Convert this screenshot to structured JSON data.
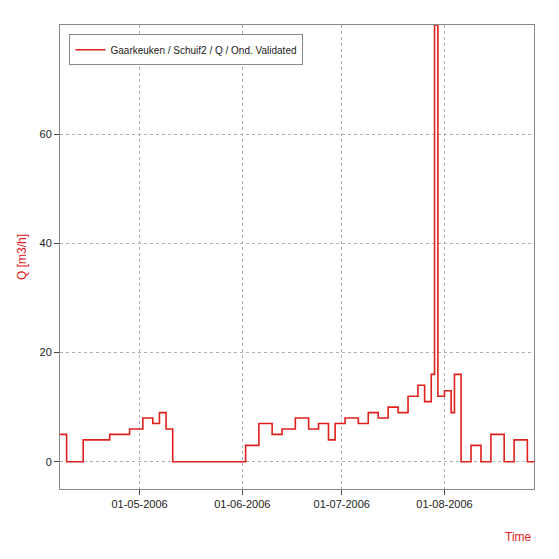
{
  "chart_data": {
    "type": "line",
    "y_label": "Q [m3/h]",
    "x_label": "Time",
    "x": [
      "2006-04-07",
      "2006-04-09",
      "2006-04-14",
      "2006-04-22",
      "2006-04-28",
      "2006-05-02",
      "2006-05-05",
      "2006-05-07",
      "2006-05-09",
      "2006-05-11",
      "2006-06-02",
      "2006-06-06",
      "2006-06-10",
      "2006-06-13",
      "2006-06-17",
      "2006-06-21",
      "2006-06-24",
      "2006-06-27",
      "2006-06-29",
      "2006-07-02",
      "2006-07-06",
      "2006-07-09",
      "2006-07-12",
      "2006-07-15",
      "2006-07-18",
      "2006-07-21",
      "2006-07-24",
      "2006-07-26",
      "2006-07-28",
      "2006-07-29",
      "2006-07-30",
      "2006-08-01",
      "2006-08-03",
      "2006-08-04",
      "2006-08-06",
      "2006-08-09",
      "2006-08-12",
      "2006-08-15",
      "2006-08-19",
      "2006-08-22",
      "2006-08-26",
      "2006-08-28"
    ],
    "series": [
      {
        "name": "Gaarkeuken / Schuif2 / Q / Ond. Validated",
        "color": "#e0201c",
        "line_style": "step",
        "values": [
          5,
          0,
          4,
          5,
          6,
          8,
          7,
          9,
          6,
          0,
          3,
          7,
          5,
          6,
          8,
          6,
          7,
          4,
          7,
          8,
          7,
          9,
          8,
          10,
          9,
          12,
          14,
          11,
          16,
          80,
          12,
          13,
          9,
          16,
          0,
          3,
          0,
          5,
          0,
          4,
          0,
          0
        ]
      }
    ],
    "xlim": [
      "2006-04-07",
      "2006-08-28"
    ],
    "xticks": [
      {
        "value": "2006-05-01",
        "label": "01-05-2006"
      },
      {
        "value": "2006-06-01",
        "label": "01-06-2006"
      },
      {
        "value": "2006-07-01",
        "label": "01-07-2006"
      },
      {
        "value": "2006-08-01",
        "label": "01-08-2006"
      }
    ],
    "ylim": [
      -5,
      80
    ],
    "yticks": [
      0,
      20,
      40,
      60
    ],
    "grid": true,
    "legend": "top left"
  }
}
